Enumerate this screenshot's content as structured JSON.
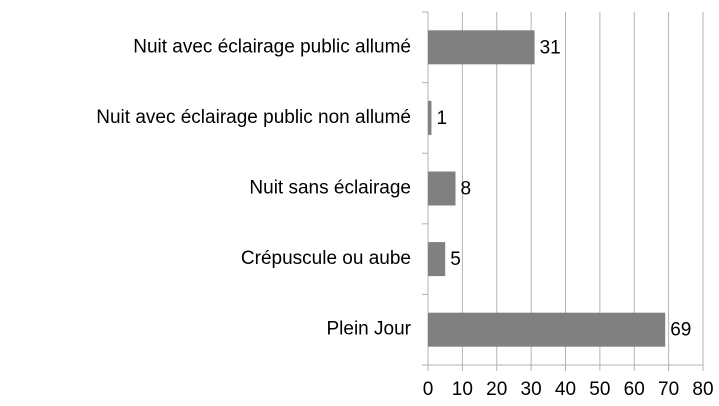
{
  "chart_data": {
    "type": "bar",
    "orientation": "horizontal",
    "categories": [
      "Nuit avec éclairage public allumé",
      "Nuit avec éclairage public non allumé",
      "Nuit sans éclairage",
      "Crépuscule ou aube",
      "Plein Jour"
    ],
    "values": [
      31,
      1,
      8,
      5,
      69
    ],
    "color": "#808080",
    "xlim": [
      0,
      80
    ],
    "xticks": [
      0,
      10,
      20,
      30,
      40,
      50,
      60,
      70,
      80
    ],
    "grid": true
  }
}
